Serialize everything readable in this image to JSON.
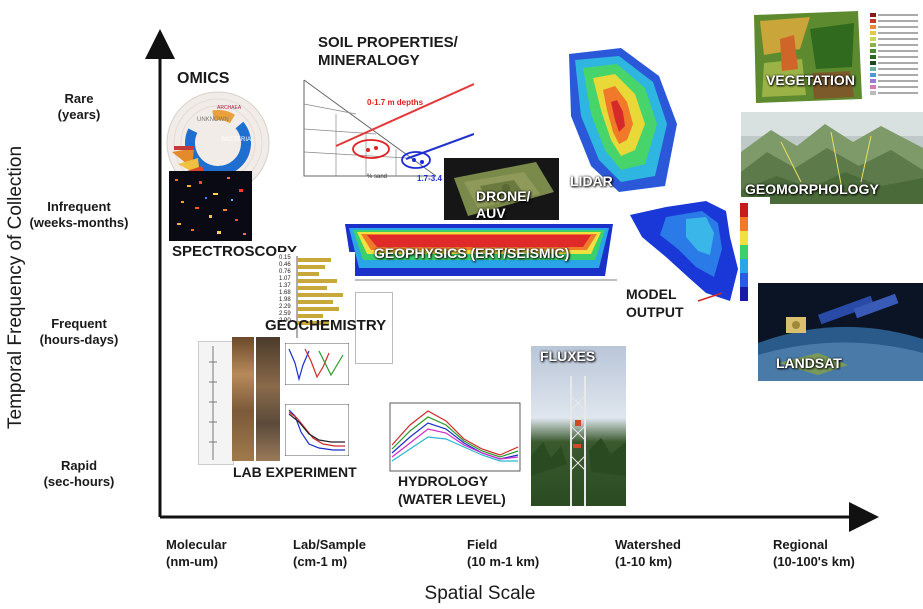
{
  "axes": {
    "y_title": "Temporal Frequency of Collection",
    "x_title": "Spatial Scale",
    "y_levels": [
      {
        "line1": "Rare",
        "line2": "(years)"
      },
      {
        "line1": "Infrequent",
        "line2": "(weeks-months)"
      },
      {
        "line1": "Frequent",
        "line2": "(hours-days)"
      },
      {
        "line1": "Rapid",
        "line2": "(sec-hours)"
      }
    ],
    "x_levels": [
      {
        "line1": "Molecular",
        "line2": "(nm-um)"
      },
      {
        "line1": "Lab/Sample",
        "line2": "(cm-1 m)"
      },
      {
        "line1": "Field",
        "line2": "(10 m-1 km)"
      },
      {
        "line1": "Watershed",
        "line2": "(1-10 km)"
      },
      {
        "line1": "Regional",
        "line2": "(10-100's km)"
      }
    ]
  },
  "items": {
    "omics": "OMICS",
    "omics_inner": {
      "unknown": "UNKNOWN",
      "bacteria": "BACTERIA",
      "archaea": "ARCHAEA"
    },
    "soil_line1": "SOIL PROPERTIES/",
    "soil_line2": "MINERALOGY",
    "soil_depth1": "0-1.7 m depths",
    "soil_depth2": "1.7-3.4 m depths",
    "soil_axis": "% sand",
    "drone_line1": "DRONE/",
    "drone_line2": "AUV",
    "lidar": "LIDAR",
    "vegetation": "VEGETATION",
    "geomorphology": "GEOMORPHOLOGY",
    "spectroscopy": "SPECTROSCOPY",
    "geophysics": "GEOPHYSICS (ERT/SEISMIC)",
    "geochemistry": "GEOCHEMISTRY",
    "model_line1": "MODEL",
    "model_line2": "OUTPUT",
    "landsat": "LANDSAT",
    "fluxes": "FLUXES",
    "lab_experiment": "LAB EXPERIMENT",
    "hydrology_line1": "HYDROLOGY",
    "hydrology_line2": "(WATER LEVEL)",
    "geochem_depths": [
      "0.15",
      "0.46",
      "0.76",
      "1.07",
      "1.37",
      "1.68",
      "1.98",
      "2.29",
      "2.59",
      "2.90"
    ]
  }
}
